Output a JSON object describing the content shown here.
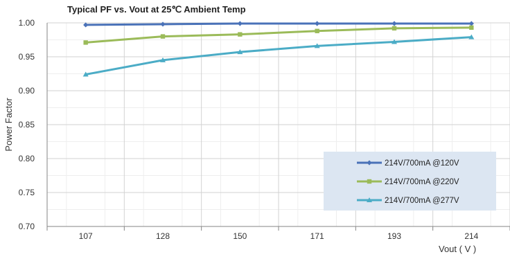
{
  "chart_data": {
    "type": "line",
    "title": "Typical PF vs. Vout at 25℃ Ambient Temp",
    "xlabel": "Vout ( V )",
    "ylabel": "Power Factor",
    "categories": [
      "107",
      "128",
      "150",
      "171",
      "193",
      "214"
    ],
    "ylim": [
      0.7,
      1.0
    ],
    "yticks": [
      "0.70",
      "0.75",
      "0.80",
      "0.85",
      "0.90",
      "0.95",
      "1.00"
    ],
    "grid": true,
    "legend_position": "bottom-right",
    "series": [
      {
        "name": "214V/700mA @120V",
        "values": [
          0.997,
          0.998,
          0.999,
          0.999,
          0.999,
          0.999
        ],
        "color": "#4a72b8",
        "marker": "diamond"
      },
      {
        "name": "214V/700mA @220V",
        "values": [
          0.971,
          0.98,
          0.983,
          0.988,
          0.992,
          0.993
        ],
        "color": "#9bbb59",
        "marker": "square"
      },
      {
        "name": "214V/700mA @277V",
        "values": [
          0.924,
          0.945,
          0.957,
          0.966,
          0.972,
          0.979
        ],
        "color": "#4bacc6",
        "marker": "triangle"
      }
    ]
  }
}
